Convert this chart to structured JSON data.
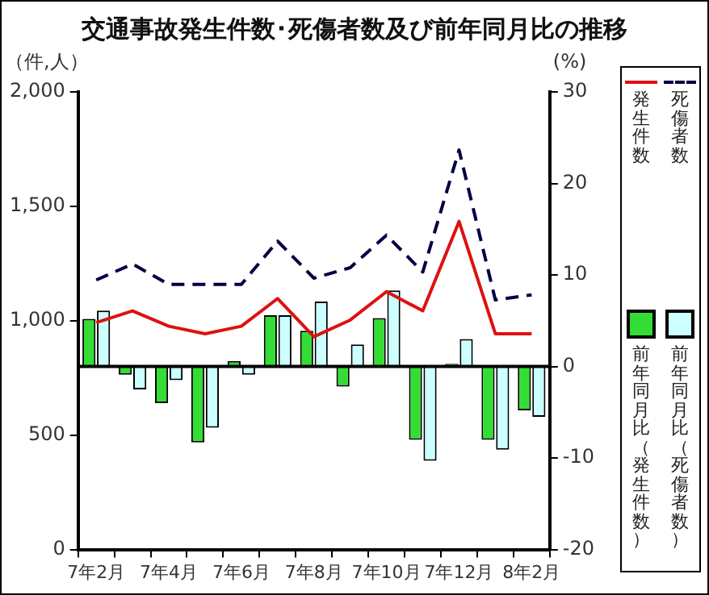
{
  "chart_data": {
    "type": "bar",
    "title": "交通事故発生件数･死傷者数及び前年同月比の推移",
    "ylabel": "（件,人）",
    "y2label": "(%)",
    "categories": [
      "7年2月",
      null,
      "7年4月",
      null,
      "7年6月",
      null,
      "7年8月",
      null,
      "7年10月",
      null,
      "7年12月",
      null,
      "8年2月"
    ],
    "series": [
      {
        "name": "発生件数",
        "type": "line",
        "color": "#dd1111",
        "line_style": "solid",
        "values": [
          992,
          1043,
          976,
          943,
          976,
          1097,
          930,
          1003,
          1127,
          1043,
          1434,
          943,
          943
        ]
      },
      {
        "name": "死傷者数",
        "type": "line",
        "color": "#000044",
        "line_style": "dashed",
        "values": [
          1178,
          1248,
          1159,
          1159,
          1159,
          1348,
          1186,
          1232,
          1374,
          1213,
          1746,
          1091,
          1113
        ]
      },
      {
        "name": "前年同月比（発生件数）",
        "axis": "y2",
        "color": "#33dd33",
        "values": [
          5.2,
          -0.9,
          -4.0,
          -8.3,
          0.6,
          5.6,
          3.9,
          -2.2,
          5.3,
          -8.0,
          0.3,
          -8.0,
          -4.8
        ]
      },
      {
        "name": "前年同月比（死傷者数）",
        "axis": "y2",
        "color": "#ccffff",
        "values": [
          6.1,
          -2.5,
          -1.5,
          -6.7,
          -0.9,
          5.6,
          7.1,
          2.4,
          8.3,
          -10.3,
          3.0,
          -9.1,
          -5.5
        ]
      }
    ],
    "ylim": [
      0,
      2000
    ],
    "yticks": [
      0,
      {
        "value": 500,
        "label": "500"
      },
      {
        "value": 1000,
        "label": "1,000"
      },
      {
        "value": 1500,
        "label": "1,500"
      },
      {
        "value": 2000,
        "label": "2,000"
      }
    ],
    "y2lim": [
      -20,
      30
    ],
    "y2ticks": [
      -20,
      -10,
      0,
      10,
      20,
      30
    ],
    "ref_lines": [
      {
        "axis": "y2",
        "value": 0,
        "color": "#000000"
      }
    ],
    "grid": false,
    "legend": "right",
    "marker": "none"
  }
}
